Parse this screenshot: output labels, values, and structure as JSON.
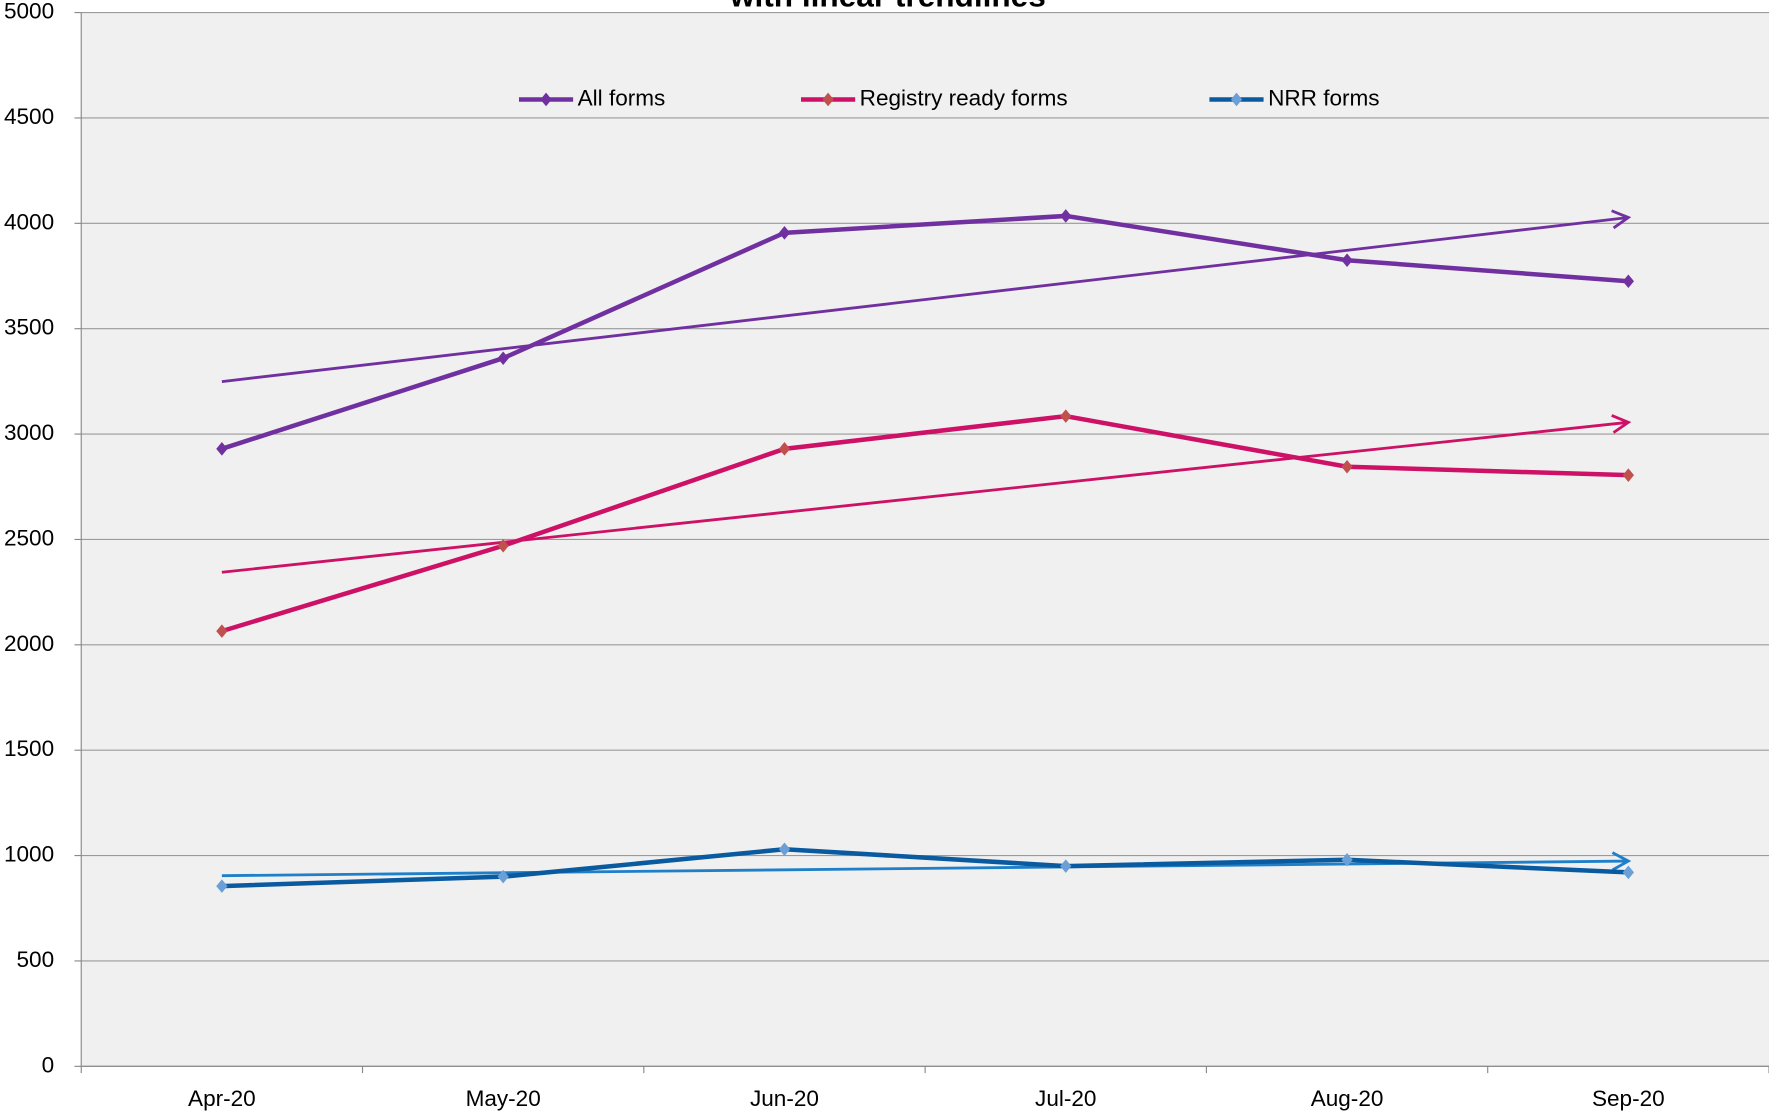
{
  "chart_data": {
    "type": "line",
    "title": "with linear trendlines",
    "categories": [
      "Apr-20",
      "May-20",
      "Jun-20",
      "Jul-20",
      "Aug-20",
      "Sep-20"
    ],
    "series": [
      {
        "name": "All forms",
        "color": "#7030a0",
        "marker_color": "#7030a0",
        "trend_color": "#7030a0",
        "values": [
          2930,
          3360,
          3955,
          4035,
          3825,
          3725
        ]
      },
      {
        "name": "Registry ready forms",
        "color": "#cc1166",
        "marker_color": "#c0504d",
        "trend_color": "#cc1166",
        "values": [
          2065,
          2470,
          2930,
          3085,
          2845,
          2805
        ]
      },
      {
        "name": "NRR forms",
        "color": "#0a5aa0",
        "marker_color": "#6a9fd8",
        "trend_color": "#1f7fc8",
        "values": [
          855,
          900,
          1030,
          950,
          980,
          920
        ]
      }
    ],
    "ylim": [
      0,
      5000
    ],
    "yticks": [
      0,
      500,
      1000,
      1500,
      2000,
      2500,
      3000,
      3500,
      4000,
      4500,
      5000
    ],
    "grid": true,
    "trendline": "linear",
    "legend": "top"
  }
}
